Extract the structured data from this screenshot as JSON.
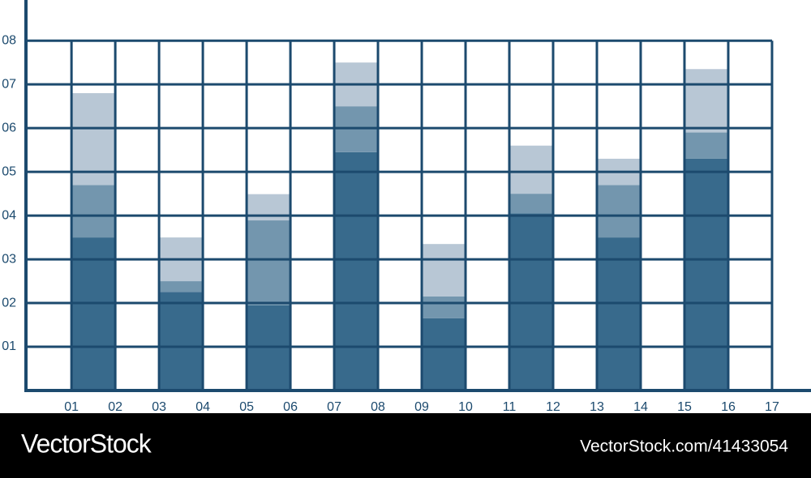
{
  "chart_data": {
    "type": "stacked-bar",
    "x": [
      1,
      3,
      5,
      7,
      9,
      11,
      13,
      15
    ],
    "series": [
      {
        "color": "#386a8c",
        "values": [
          3.5,
          2.25,
          1.95,
          5.45,
          1.65,
          4.05,
          3.5,
          5.3
        ]
      },
      {
        "color": "#7396ae",
        "values": [
          1.2,
          0.25,
          1.94,
          1.05,
          0.5,
          0.45,
          1.2,
          0.6
        ]
      },
      {
        "color": "#b8c7d5",
        "values": [
          2.1,
          1.0,
          0.6,
          1.0,
          1.2,
          1.1,
          0.6,
          1.45
        ]
      }
    ],
    "xlim": [
      -0.04,
      17.89
    ],
    "ylim": [
      0,
      8.93
    ],
    "xticks": [
      {
        "value": 1,
        "label": "01"
      },
      {
        "value": 2,
        "label": "02"
      },
      {
        "value": 3,
        "label": "03"
      },
      {
        "value": 4,
        "label": "04"
      },
      {
        "value": 5,
        "label": "05"
      },
      {
        "value": 6,
        "label": "06"
      },
      {
        "value": 7,
        "label": "07"
      },
      {
        "value": 8,
        "label": "08"
      },
      {
        "value": 9,
        "label": "09"
      },
      10,
      11,
      12,
      13,
      14,
      15,
      16,
      17
    ],
    "yticks": [
      {
        "value": 1,
        "label": "01"
      },
      {
        "value": 2,
        "label": "02"
      },
      {
        "value": 3,
        "label": "03"
      },
      {
        "value": 4,
        "label": "04"
      },
      {
        "value": 5,
        "label": "05"
      },
      {
        "value": 6,
        "label": "06"
      },
      {
        "value": 7,
        "label": "07"
      },
      {
        "value": 8,
        "label": "08"
      }
    ],
    "grid": true
  },
  "watermark": {
    "brand": "VectorStock",
    "id": "VectorStock.com/41433054"
  }
}
